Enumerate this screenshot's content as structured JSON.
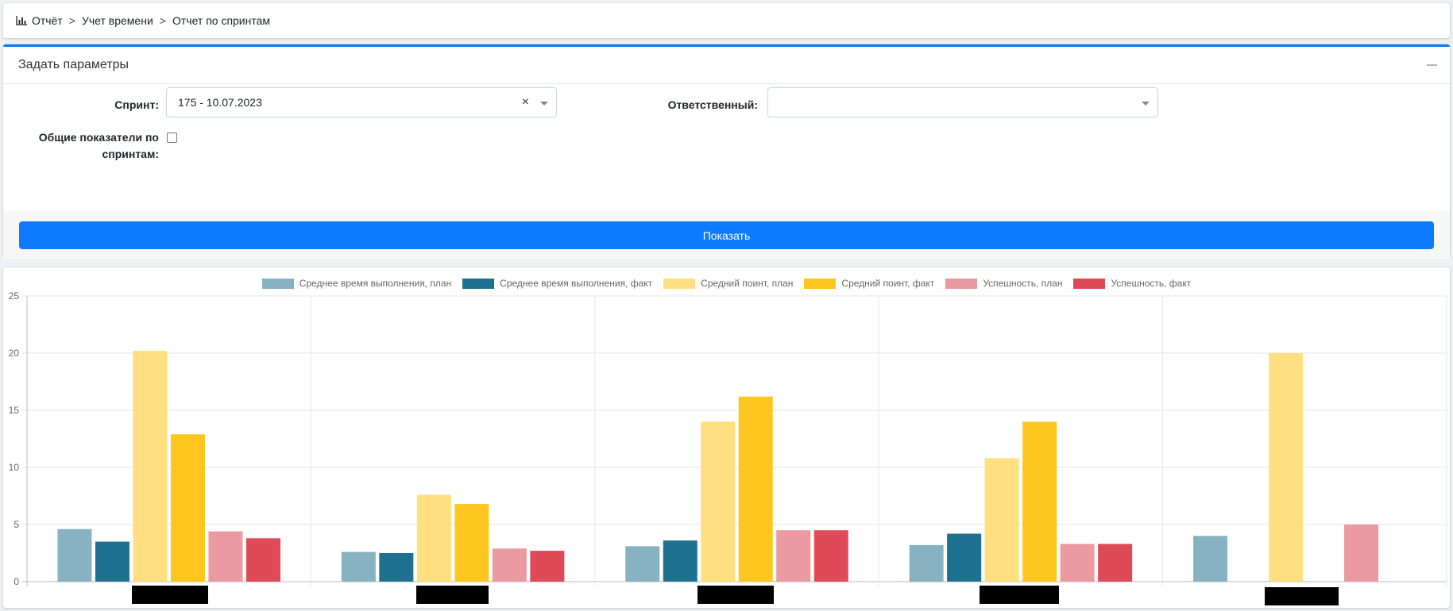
{
  "breadcrumb": {
    "icon": "bar-chart-icon",
    "items": [
      "Отчёт",
      "Учет времени",
      "Отчет по спринтам"
    ],
    "separator": ">"
  },
  "params": {
    "title": "Задать параметры",
    "sprint_label": "Спринт:",
    "sprint_value": "175 - 10.07.2023",
    "responsible_label": "Ответственный:",
    "responsible_value": "",
    "totals_label_line1": "Общие показатели по",
    "totals_label_line2": "спринтам:",
    "totals_checked": false,
    "show_button": "Показать",
    "accent": "#007bff"
  },
  "chart_data": {
    "type": "bar",
    "categories": [
      "",
      "",
      "",
      "",
      ""
    ],
    "ylim": [
      0,
      25
    ],
    "yticks": [
      0,
      5,
      10,
      15,
      20,
      25
    ],
    "grid": true,
    "legend_position": "top",
    "series": [
      {
        "name": "Среднее время выполнения, план",
        "color": "#86b2c2",
        "values": [
          4.6,
          2.6,
          3.1,
          3.2,
          4.0
        ]
      },
      {
        "name": "Среднее время выполнения, факт",
        "color": "#1f7191",
        "values": [
          3.5,
          2.5,
          3.6,
          4.2,
          null
        ]
      },
      {
        "name": "Средний поинт, план",
        "color": "#ffdf80",
        "values": [
          20.2,
          7.6,
          14.0,
          10.8,
          20.0
        ]
      },
      {
        "name": "Средний поинт, факт",
        "color": "#ffc61f",
        "values": [
          12.9,
          6.8,
          16.2,
          14.0,
          null
        ]
      },
      {
        "name": "Успешность, план",
        "color": "#ec9aa1",
        "values": [
          4.4,
          2.9,
          4.5,
          3.3,
          5.0
        ]
      },
      {
        "name": "Успешность, факт",
        "color": "#df4a59",
        "values": [
          3.8,
          2.7,
          4.5,
          3.3,
          null
        ]
      }
    ]
  }
}
